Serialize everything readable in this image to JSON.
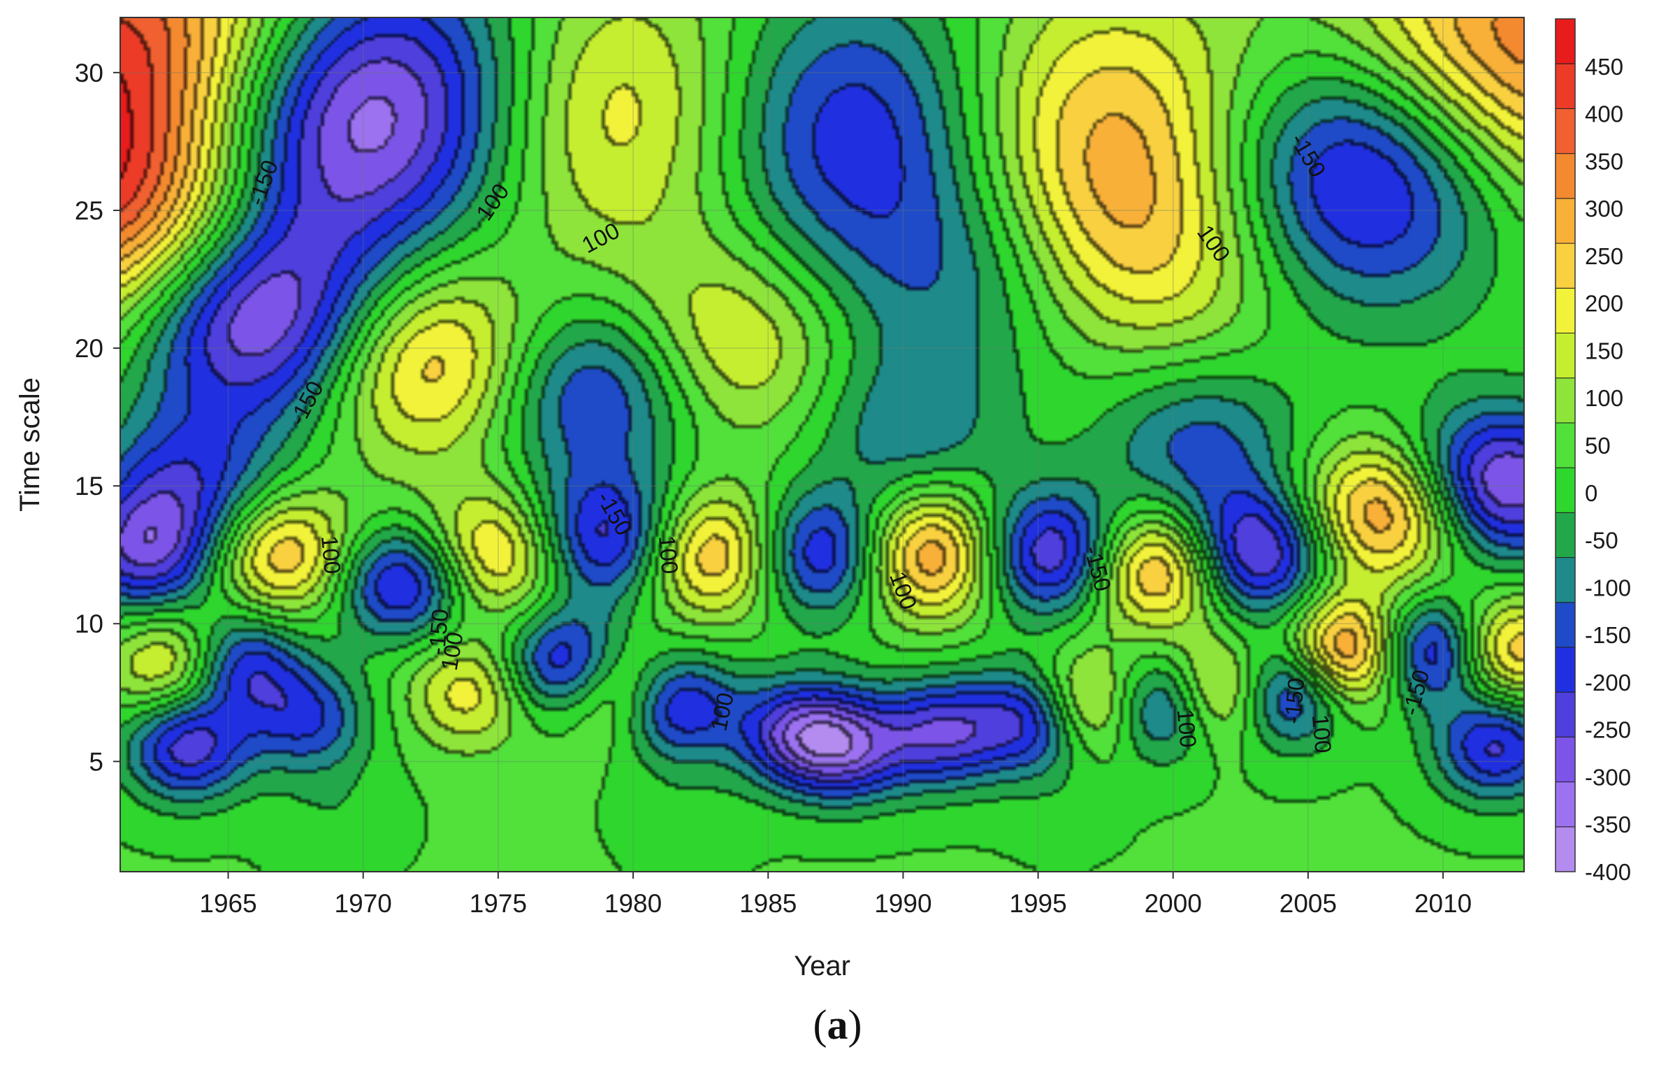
{
  "chart_data": {
    "type": "heatmap",
    "title": "",
    "xlabel": "Year",
    "ylabel": "Time scale",
    "xlim": [
      1961,
      2013
    ],
    "ylim": [
      1,
      32
    ],
    "x_ticks": [
      "1965",
      "1970",
      "1975",
      "1980",
      "1985",
      "1990",
      "1995",
      "2000",
      "2005",
      "2010"
    ],
    "y_ticks": [
      "5",
      "10",
      "15",
      "20",
      "25",
      "30"
    ],
    "colorbar": {
      "range": [
        -400,
        500
      ],
      "ticks": [
        "450",
        "400",
        "350",
        "300",
        "250",
        "200",
        "150",
        "100",
        "50",
        "0",
        "-50",
        "-100",
        "-150",
        "-200",
        "-250",
        "-300",
        "-350",
        "-400"
      ],
      "colors": [
        "#b48cf0",
        "#9c72f0",
        "#7c55e8",
        "#4f3fdc",
        "#2030e0",
        "#1f4bc8",
        "#1e8a8a",
        "#22a84a",
        "#2ed62e",
        "#52e03a",
        "#8ee43a",
        "#c6ee30",
        "#f2f23a",
        "#f8d040",
        "#f8b038",
        "#f48a30",
        "#f06030",
        "#ec3c28",
        "#e81c1c"
      ]
    },
    "grid": true,
    "contour_labels": [
      {
        "text": "-150",
        "year": 1966.3,
        "scale": 26.0,
        "angle": -70
      },
      {
        "text": "-150",
        "year": 1967.9,
        "scale": 18.0,
        "angle": -62
      },
      {
        "text": "100",
        "year": 1974.8,
        "scale": 25.3,
        "angle": -55
      },
      {
        "text": "100",
        "year": 1978.8,
        "scale": 24.0,
        "angle": -28
      },
      {
        "text": "-150",
        "year": 1979.3,
        "scale": 14.0,
        "angle": 60
      },
      {
        "text": "100",
        "year": 1968.8,
        "scale": 12.5,
        "angle": 85
      },
      {
        "text": "-150",
        "year": 1972.8,
        "scale": 9.7,
        "angle": -85
      },
      {
        "text": "100",
        "year": 1973.3,
        "scale": 9.0,
        "angle": -80
      },
      {
        "text": "100",
        "year": 1981.3,
        "scale": 12.5,
        "angle": 85
      },
      {
        "text": "100",
        "year": 1983.3,
        "scale": 6.8,
        "angle": -78
      },
      {
        "text": "100",
        "year": 1890.0,
        "scale": 0,
        "angle": 0
      },
      {
        "text": "100",
        "year": 1990.0,
        "scale": 11.2,
        "angle": 70
      },
      {
        "text": "-150",
        "year": 1997.2,
        "scale": 12.0,
        "angle": 75
      },
      {
        "text": "100",
        "year": 2000.5,
        "scale": 6.2,
        "angle": 85
      },
      {
        "text": "-150",
        "year": 2004.5,
        "scale": 7.2,
        "angle": -85
      },
      {
        "text": "100",
        "year": 2005.5,
        "scale": 6.0,
        "angle": 85
      },
      {
        "text": "-150",
        "year": 2009.0,
        "scale": 7.5,
        "angle": -75
      },
      {
        "text": "-150",
        "year": 2005.0,
        "scale": 27.0,
        "angle": 60
      },
      {
        "text": "100",
        "year": 2001.5,
        "scale": 23.8,
        "angle": 55
      }
    ],
    "centers": [
      {
        "year": 1962.0,
        "scale": 30.5,
        "value": 450
      },
      {
        "year": 1961.5,
        "scale": 25.0,
        "value": 400
      },
      {
        "year": 1965.5,
        "scale": 27.0,
        "value": -250
      },
      {
        "year": 1966.0,
        "scale": 21.0,
        "value": -380
      },
      {
        "year": 1971.0,
        "scale": 29.0,
        "value": -380
      },
      {
        "year": 1963.5,
        "scale": 15.0,
        "value": -200
      },
      {
        "year": 1962.0,
        "scale": 12.5,
        "value": -260
      },
      {
        "year": 1972.5,
        "scale": 19.5,
        "value": 280
      },
      {
        "year": 1979.0,
        "scale": 28.5,
        "value": 260
      },
      {
        "year": 1983.5,
        "scale": 20.0,
        "value": 180
      },
      {
        "year": 1978.5,
        "scale": 18.5,
        "value": -260
      },
      {
        "year": 1988.0,
        "scale": 28.0,
        "value": -270
      },
      {
        "year": 1992.0,
        "scale": 22.5,
        "value": -130
      },
      {
        "year": 1990.0,
        "scale": 17.0,
        "value": -130
      },
      {
        "year": 1997.5,
        "scale": 28.0,
        "value": 250
      },
      {
        "year": 1999.5,
        "scale": 23.5,
        "value": 170
      },
      {
        "year": 2007.0,
        "scale": 26.5,
        "value": -380
      },
      {
        "year": 2012.0,
        "scale": 15.0,
        "value": -370
      },
      {
        "year": 2012.5,
        "scale": 30.5,
        "value": 360
      },
      {
        "year": 2008.0,
        "scale": 14.0,
        "value": 330
      },
      {
        "year": 2003.0,
        "scale": 12.5,
        "value": -340
      },
      {
        "year": 1999.5,
        "scale": 12.0,
        "value": 330
      },
      {
        "year": 2001.0,
        "scale": 16.5,
        "value": -170
      },
      {
        "year": 1995.5,
        "scale": 12.5,
        "value": -320
      },
      {
        "year": 1991.0,
        "scale": 12.5,
        "value": 330
      },
      {
        "year": 1987.0,
        "scale": 12.5,
        "value": -290
      },
      {
        "year": 1983.0,
        "scale": 12.5,
        "value": 290
      },
      {
        "year": 1979.0,
        "scale": 13.0,
        "value": -290
      },
      {
        "year": 1975.0,
        "scale": 12.5,
        "value": 250
      },
      {
        "year": 1971.5,
        "scale": 11.5,
        "value": -290
      },
      {
        "year": 1967.0,
        "scale": 12.5,
        "value": 260
      },
      {
        "year": 1963.0,
        "scale": 8.5,
        "value": 200
      },
      {
        "year": 1963.5,
        "scale": 5.5,
        "value": -270
      },
      {
        "year": 1965.5,
        "scale": 8.5,
        "value": -240
      },
      {
        "year": 1968.0,
        "scale": 6.5,
        "value": -190
      },
      {
        "year": 1974.0,
        "scale": 7.5,
        "value": 170
      },
      {
        "year": 1977.5,
        "scale": 8.5,
        "value": -270
      },
      {
        "year": 1979.5,
        "scale": 7.5,
        "value": 200
      },
      {
        "year": 1981.5,
        "scale": 7.0,
        "value": -280
      },
      {
        "year": 1986.0,
        "scale": 6.0,
        "value": -250
      },
      {
        "year": 1988.0,
        "scale": 5.5,
        "value": -260
      },
      {
        "year": 1991.5,
        "scale": 6.0,
        "value": -260
      },
      {
        "year": 1995.0,
        "scale": 6.5,
        "value": -280
      },
      {
        "year": 1997.0,
        "scale": 7.0,
        "value": 280
      },
      {
        "year": 1999.5,
        "scale": 7.0,
        "value": -280
      },
      {
        "year": 2002.0,
        "scale": 7.5,
        "value": 300
      },
      {
        "year": 2004.0,
        "scale": 7.5,
        "value": -330
      },
      {
        "year": 2006.5,
        "scale": 9.0,
        "value": 350
      },
      {
        "year": 2009.5,
        "scale": 9.0,
        "value": -300
      },
      {
        "year": 2012.5,
        "scale": 9.0,
        "value": 250
      },
      {
        "year": 2012.0,
        "scale": 5.5,
        "value": -250
      },
      {
        "year": 1969.0,
        "scale": 3.0,
        "value": -40
      },
      {
        "year": 1982.0,
        "scale": 3.0,
        "value": -30
      },
      {
        "year": 1996.0,
        "scale": 3.5,
        "value": -20
      }
    ]
  },
  "caption": {
    "open": "(",
    "letter": "a",
    "close": ")"
  }
}
